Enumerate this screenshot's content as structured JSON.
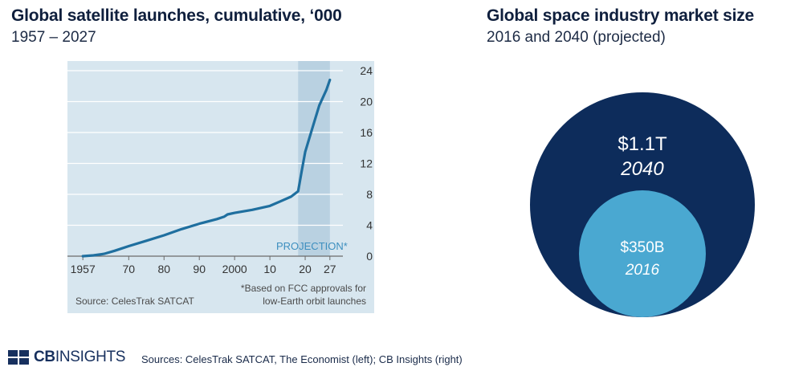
{
  "left": {
    "title": "Global satellite launches, cumulative, ‘000",
    "subtitle": "1957 – 2027"
  },
  "right": {
    "title": "Global space industry market size",
    "subtitle": "2016 and 2040 (projected)"
  },
  "footer": {
    "logo": {
      "first": "CB",
      "second": "INSIGHTS"
    },
    "sources": "Sources: CelesTrak SATCAT, The Economist (left); CB Insights (right)"
  },
  "colors": {
    "panel_bg": "#d7e6ef",
    "line": "#1f6f9f",
    "projection_band": "#b9d1e1",
    "projection_text": "#3d8fbf",
    "grid": "#ffffff",
    "big_circle": "#0d2c5b",
    "small_circle": "#4aa8d1",
    "axis_text": "#333333"
  },
  "chart_data": [
    {
      "type": "line",
      "title": "Global satellite launches, cumulative, ‘000",
      "subtitle": "1957 – 2027",
      "x_tick_labels": [
        "1957",
        "70",
        "80",
        "90",
        "2000",
        "10",
        "20",
        "27"
      ],
      "x_tick_values": [
        1957,
        1970,
        1980,
        1990,
        2000,
        2010,
        2020,
        2027
      ],
      "y_tick_labels": [
        "0",
        "4",
        "8",
        "12",
        "16",
        "20",
        "24"
      ],
      "y_tick_values": [
        0,
        4,
        8,
        12,
        16,
        20,
        24
      ],
      "xlim": [
        1954,
        2030
      ],
      "ylim": [
        0,
        24
      ],
      "y_axis_side": "right",
      "grid": "horizontal",
      "x": [
        1957,
        1960,
        1963,
        1966,
        1970,
        1975,
        1980,
        1985,
        1990,
        1995,
        1997,
        1998,
        2000,
        2005,
        2010,
        2013,
        2016,
        2018,
        2019,
        2020,
        2022,
        2024,
        2026,
        2027
      ],
      "y": [
        0,
        0.1,
        0.3,
        0.7,
        1.3,
        2.0,
        2.7,
        3.5,
        4.2,
        4.8,
        5.1,
        5.4,
        5.6,
        6.0,
        6.5,
        7.1,
        7.7,
        8.4,
        11.0,
        13.5,
        16.5,
        19.5,
        21.5,
        22.8
      ],
      "projection": {
        "from": 2018,
        "to": 2027,
        "label": "PROJECTION*"
      },
      "footnote": "*Based on FCC approvals for low-Earth orbit launches",
      "source": "Source: CelesTrak SATCAT"
    },
    {
      "type": "bubble",
      "title": "Global space industry market size",
      "subtitle": "2016 and 2040 (projected)",
      "items": [
        {
          "label": "$1.1T",
          "year": "2040",
          "value": 1.1
        },
        {
          "label": "$350B",
          "year": "2016",
          "value": 0.35
        }
      ]
    }
  ]
}
